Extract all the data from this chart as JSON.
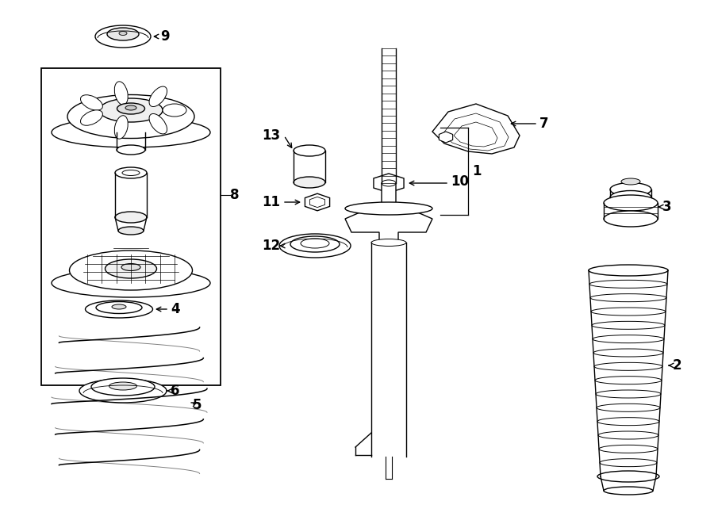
{
  "bg_color": "#ffffff",
  "lc": "#000000",
  "fig_w": 9.0,
  "fig_h": 6.61,
  "dpi": 100
}
